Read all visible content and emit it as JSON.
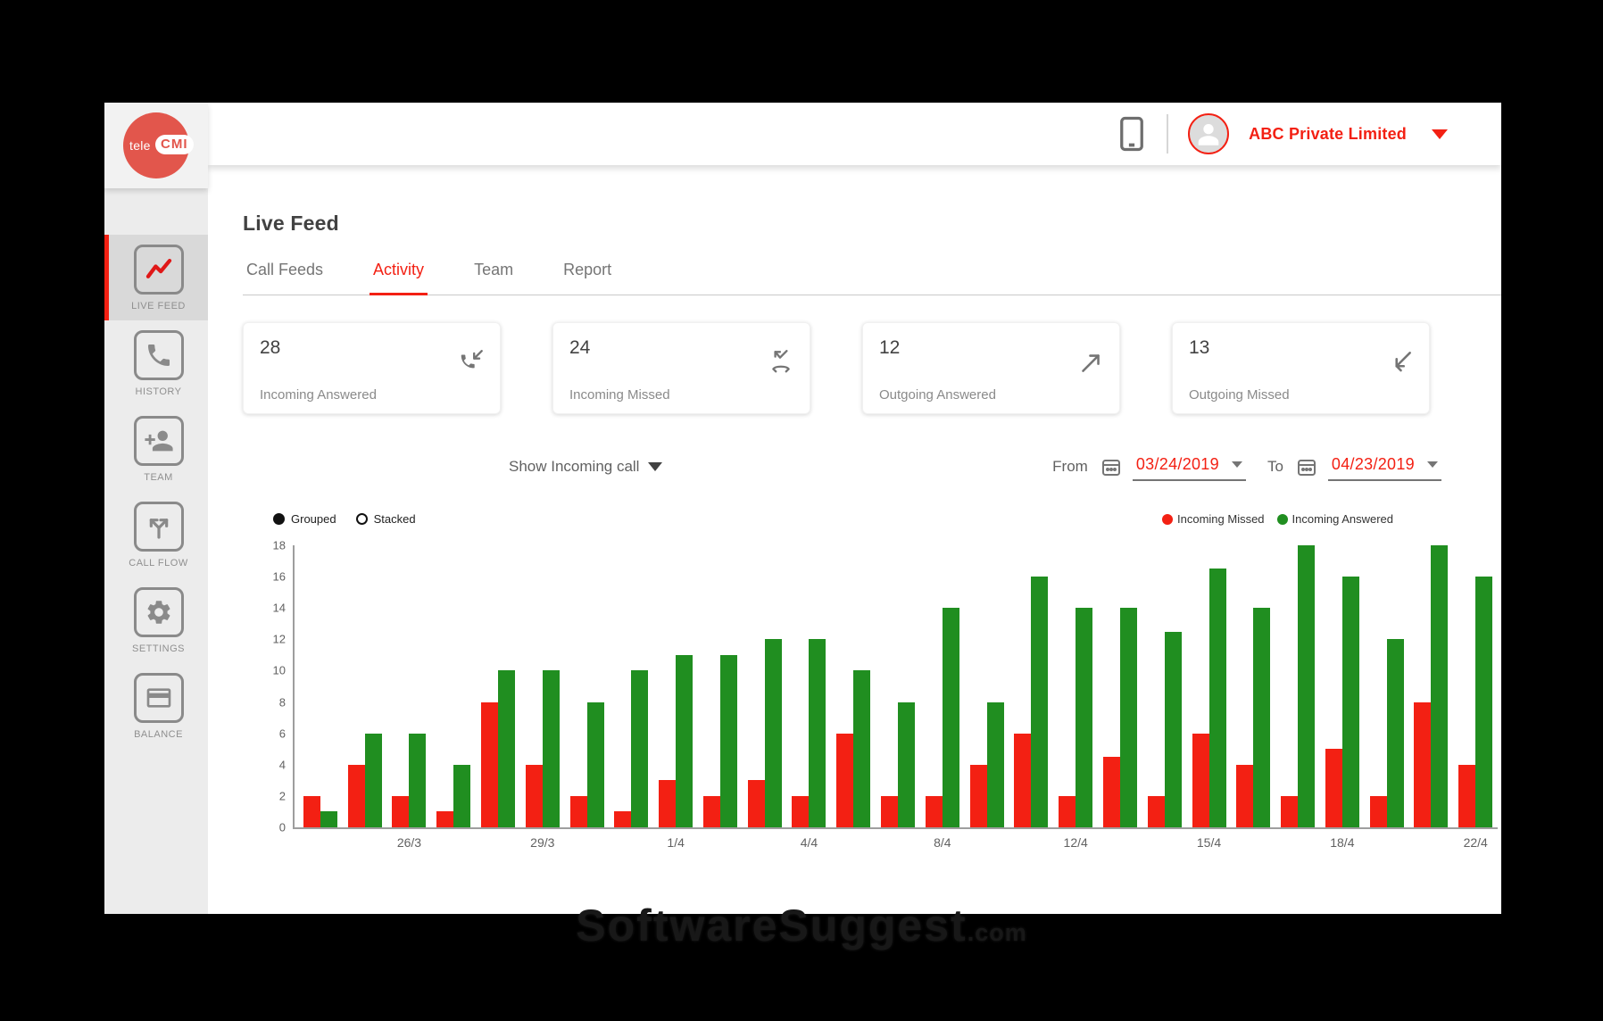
{
  "header": {
    "logo_tele": "tele",
    "logo_cmi": "CMI",
    "account_name": "ABC Private Limited"
  },
  "sidebar": {
    "items": [
      {
        "label": "LIVE FEED",
        "icon": "line-chart-icon",
        "active": true
      },
      {
        "label": "HISTORY",
        "icon": "phone-icon",
        "active": false
      },
      {
        "label": "TEAM",
        "icon": "person-add-icon",
        "active": false
      },
      {
        "label": "CALL FLOW",
        "icon": "call-split-icon",
        "active": false
      },
      {
        "label": "SETTINGS",
        "icon": "gear-icon",
        "active": false
      },
      {
        "label": "BALANCE",
        "icon": "credit-card-icon",
        "active": false
      }
    ]
  },
  "page": {
    "title": "Live Feed"
  },
  "tabs": [
    {
      "label": "Call Feeds",
      "active": false
    },
    {
      "label": "Activity",
      "active": true
    },
    {
      "label": "Team",
      "active": false
    },
    {
      "label": "Report",
      "active": false
    }
  ],
  "cards": [
    {
      "value": "28",
      "label": "Incoming Answered",
      "icon": "incoming-answered-call-icon"
    },
    {
      "value": "24",
      "label": "Incoming Missed",
      "icon": "incoming-missed-call-icon"
    },
    {
      "value": "12",
      "label": "Outgoing Answered",
      "icon": "outgoing-answered-arrow-icon"
    },
    {
      "value": "13",
      "label": "Outgoing Missed",
      "icon": "outgoing-missed-arrow-icon"
    }
  ],
  "filters": {
    "show_dropdown": "Show Incoming call",
    "from_label": "From",
    "from_date": "03/24/2019",
    "to_label": "To",
    "to_date": "04/23/2019"
  },
  "chart_controls": {
    "mode_options": [
      {
        "label": "Grouped",
        "selected": true
      },
      {
        "label": "Stacked",
        "selected": false
      }
    ]
  },
  "chart_data": {
    "type": "bar",
    "grouped": true,
    "title": "",
    "xlabel": "",
    "ylabel": "",
    "ylim": [
      0,
      18
    ],
    "yticks": [
      0,
      2,
      4,
      6,
      8,
      10,
      12,
      14,
      16,
      18
    ],
    "grid": false,
    "legend_position": "top-right",
    "category_labels": [
      null,
      null,
      "26/3",
      null,
      null,
      "29/3",
      null,
      null,
      "1/4",
      null,
      null,
      "4/4",
      null,
      null,
      "8/4",
      null,
      null,
      "12/4",
      null,
      null,
      "15/4",
      null,
      null,
      "18/4",
      null,
      null,
      "22/4"
    ],
    "series": [
      {
        "name": "Incoming Missed",
        "color": "#f32013",
        "values": [
          2,
          4,
          2,
          1,
          8,
          4,
          2,
          1,
          3,
          2,
          3,
          2,
          6,
          2,
          2,
          4,
          6,
          2,
          4.5,
          2,
          6,
          4,
          2,
          5,
          2,
          8,
          4
        ]
      },
      {
        "name": "Incoming Answered",
        "color": "#208e20",
        "values": [
          1,
          6,
          6,
          4,
          10,
          10,
          8,
          10,
          11,
          11,
          12,
          12,
          10,
          8,
          14,
          8,
          16,
          14,
          14,
          12.5,
          16.5,
          14,
          18,
          16,
          12,
          18,
          16
        ]
      }
    ]
  },
  "watermark": {
    "text": "SoftwareSuggest",
    "suffix": ".com"
  },
  "colors": {
    "accent_red": "#f32013",
    "logo_coral": "#e2564c",
    "bar_red": "#f32013",
    "bar_green": "#208e20",
    "icon_gray": "#757575"
  }
}
